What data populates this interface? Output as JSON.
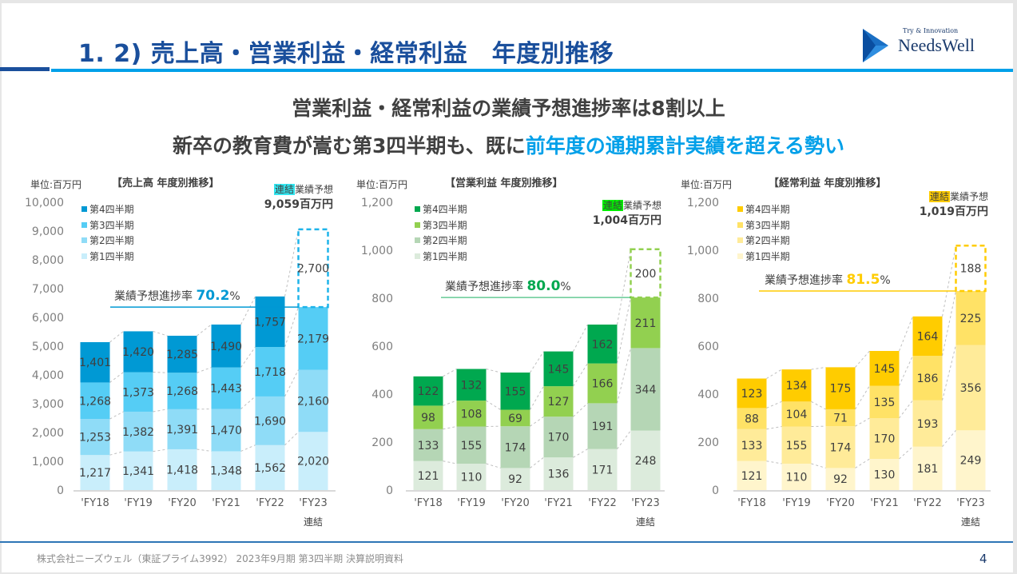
{
  "header": {
    "title": "1. 2) 売上高・営業利益・経常利益　年度別推移",
    "logo_tagline": "Try & Innovation",
    "logo_name": "NeedsWell",
    "accent_color": "#00a0e9",
    "title_color": "#1a4f9c"
  },
  "headline": {
    "line1": "営業利益・経常利益の業績予想進捗率は8割以上",
    "line2_prefix": "新卒の教育費が嵩む第3四半期も、既に",
    "line2_accent": "前年度の通期累計実績を超える勢い"
  },
  "chart_data": [
    {
      "type": "bar",
      "stacked": true,
      "title": "【売上高 年度別推移】",
      "unit": "単位:百万円",
      "categories": [
        "'FY18",
        "'FY19",
        "'FY20",
        "'FY21",
        "'FY22",
        "'FY23"
      ],
      "category_note": "連結",
      "ylim": [
        0,
        10000
      ],
      "ytick_step": 1000,
      "ytick_labels": [
        "0",
        "1,000",
        "2,000",
        "3,000",
        "4,000",
        "5,000",
        "6,000",
        "7,000",
        "8,000",
        "9,000",
        "10,000"
      ],
      "legend": [
        "第4四半期",
        "第3四半期",
        "第2四半期",
        "第1四半期"
      ],
      "legend_placement": "top-left",
      "series": [
        {
          "name": "第1四半期",
          "values": [
            1217,
            1341,
            1418,
            1348,
            1562,
            2020
          ],
          "labels": [
            "1,217",
            "1,341",
            "1,418",
            "1,348",
            "1,562",
            "2,020"
          ],
          "color": "#c9eefb"
        },
        {
          "name": "第2四半期",
          "values": [
            1253,
            1382,
            1391,
            1470,
            1690,
            2160
          ],
          "labels": [
            "1,253",
            "1,382",
            "1,391",
            "1,470",
            "1,690",
            "2,160"
          ],
          "color": "#8fdcf7"
        },
        {
          "name": "第3四半期",
          "values": [
            1268,
            1373,
            1268,
            1443,
            1718,
            2179
          ],
          "labels": [
            "1,268",
            "1,373",
            "1,268",
            "1,443",
            "1,718",
            "2,179"
          ],
          "color": "#55cdf5"
        },
        {
          "name": "第4四半期",
          "values": [
            1401,
            1420,
            1285,
            1490,
            1757,
            null
          ],
          "labels": [
            "1,401",
            "1,420",
            "1,285",
            "1,490",
            "1,757",
            ""
          ],
          "color": "#0099d4"
        }
      ],
      "forecast": {
        "tag": "連結",
        "label": "業績予想",
        "value": 9059,
        "value_label": "9,059百万円",
        "remaining": 2700,
        "remaining_label": "2,700",
        "tag_color": "#33e6f0"
      },
      "progress": {
        "label": "業績予想進捗率",
        "value": "70.2",
        "suffix": "%",
        "color": "#0099d4"
      }
    },
    {
      "type": "bar",
      "stacked": true,
      "title": "【営業利益 年度別推移】",
      "unit": "単位:百万円",
      "categories": [
        "'FY18",
        "'FY19",
        "'FY20",
        "'FY21",
        "'FY22",
        "'FY23"
      ],
      "category_note": "連結",
      "ylim": [
        0,
        1200
      ],
      "ytick_step": 200,
      "ytick_labels": [
        "0",
        "200",
        "400",
        "600",
        "800",
        "1,000",
        "1,200"
      ],
      "legend": [
        "第4四半期",
        "第3四半期",
        "第2四半期",
        "第1四半期"
      ],
      "legend_placement": "top-left",
      "series": [
        {
          "name": "第1四半期",
          "values": [
            121,
            110,
            92,
            136,
            171,
            248
          ],
          "labels": [
            "121",
            "110",
            "92",
            "136",
            "171",
            "248"
          ],
          "color": "#dcebdc"
        },
        {
          "name": "第2四半期",
          "values": [
            133,
            155,
            174,
            170,
            191,
            344
          ],
          "labels": [
            "133",
            "155",
            "174",
            "170",
            "191",
            "344"
          ],
          "color": "#b5d6b5"
        },
        {
          "name": "第3四半期",
          "values": [
            98,
            108,
            69,
            127,
            166,
            211
          ],
          "labels": [
            "98",
            "108",
            "69",
            "127",
            "166",
            "211"
          ],
          "color": "#92d050"
        },
        {
          "name": "第4四半期",
          "values": [
            122,
            132,
            155,
            145,
            162,
            null
          ],
          "labels": [
            "122",
            "132",
            "155",
            "145",
            "162",
            ""
          ],
          "color": "#00a84f"
        }
      ],
      "forecast": {
        "tag": "連結",
        "label": "業績予想",
        "value": 1004,
        "value_label": "1,004百万円",
        "remaining": 200,
        "remaining_label": "200",
        "tag_color": "#00ee00"
      },
      "progress": {
        "label": "業績予想進捗率",
        "value": "80.0",
        "suffix": "%",
        "color": "#00a84f"
      }
    },
    {
      "type": "bar",
      "stacked": true,
      "title": "【経常利益 年度別推移】",
      "unit": "単位:百万円",
      "categories": [
        "'FY18",
        "'FY19",
        "'FY20",
        "'FY21",
        "'FY22",
        "'FY23"
      ],
      "category_note": "連結",
      "ylim": [
        0,
        1200
      ],
      "ytick_step": 200,
      "ytick_labels": [
        "0",
        "200",
        "400",
        "600",
        "800",
        "1,000",
        "1,200"
      ],
      "legend": [
        "第4四半期",
        "第3四半期",
        "第2四半期",
        "第1四半期"
      ],
      "legend_placement": "top-left",
      "series": [
        {
          "name": "第1四半期",
          "values": [
            121,
            110,
            92,
            130,
            181,
            249
          ],
          "labels": [
            "121",
            "110",
            "92",
            "130",
            "181",
            "249"
          ],
          "color": "#fff5cc"
        },
        {
          "name": "第2四半期",
          "values": [
            133,
            155,
            174,
            170,
            193,
            356
          ],
          "labels": [
            "133",
            "155",
            "174",
            "170",
            "193",
            "356"
          ],
          "color": "#ffeb99"
        },
        {
          "name": "第3四半期",
          "values": [
            88,
            104,
            71,
            135,
            186,
            225
          ],
          "labels": [
            "88",
            "104",
            "71",
            "135",
            "186",
            "225"
          ],
          "color": "#ffe266"
        },
        {
          "name": "第4四半期",
          "values": [
            123,
            134,
            175,
            145,
            164,
            null
          ],
          "labels": [
            "123",
            "134",
            "175",
            "145",
            "164",
            ""
          ],
          "color": "#ffcc00"
        }
      ],
      "forecast": {
        "tag": "連結",
        "label": "業績予想",
        "value": 1019,
        "value_label": "1,019百万円",
        "remaining": 188,
        "remaining_label": "188",
        "tag_color": "#ffcc00"
      },
      "progress": {
        "label": "業績予想進捗率",
        "value": "81.5",
        "suffix": "%",
        "color": "#ffcc00"
      }
    }
  ],
  "footer": {
    "text": "株式会社ニーズウェル（東証プライム3992）  2023年9月期  第3四半期  決算説明資料",
    "page": "4"
  }
}
